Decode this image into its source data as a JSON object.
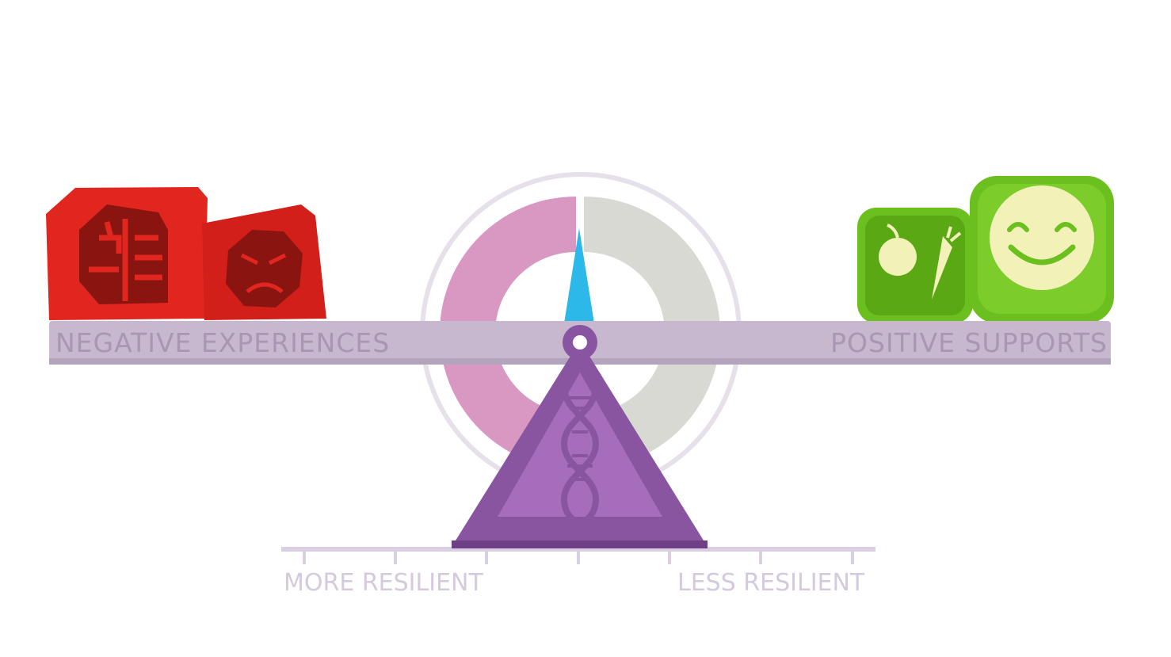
{
  "labels": {
    "negative": "NEGATIVE EXPERIENCES",
    "positive": "POSITIVE SUPPORTS",
    "more_resilient": "MORE RESILIENT",
    "less_resilient": "LESS RESILIENT"
  },
  "colors": {
    "beam": "#c7b8cf",
    "beam_text": "#a996b3",
    "axis": "#d9cfe0",
    "axis_text": "#d5c9de",
    "gauge_left": "#d898c2",
    "gauge_right": "#d9d9d3",
    "needle": "#2cb8e8",
    "fulcrum": "#8a55a0",
    "fulcrum_inner": "#a76dbd",
    "negative_block": "#e0261f",
    "negative_block_dark": "#8a1410",
    "positive_block": "#6bbf1e",
    "positive_block_face": "#f1f1b8"
  },
  "icons": {
    "negative_block_1": "brain-icon",
    "negative_block_2": "angry-face-icon",
    "positive_block_1": "apple-carrot-icon",
    "positive_block_2": "smiley-face-icon",
    "fulcrum": "dna-icon"
  }
}
